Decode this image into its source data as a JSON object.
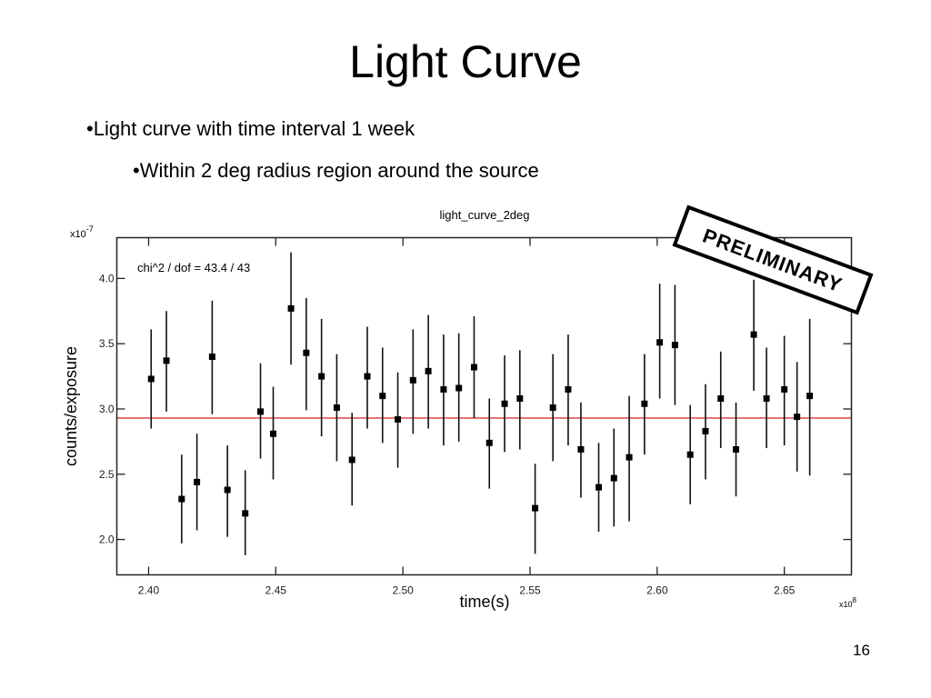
{
  "slide": {
    "title": "Light Curve",
    "bullets": [
      "•Light curve with time interval 1 week",
      "•Within 2 deg radius region around the source"
    ],
    "page_number": "16"
  },
  "stamp": {
    "text": "PRELIMINARY"
  },
  "colors": {
    "data": "#000000",
    "fit_line": "#d42020",
    "frame": "#222222"
  },
  "chart_data": {
    "type": "scatter",
    "title": "light_curve_2deg",
    "xlabel": "time(s)",
    "ylabel": "counts/exposure",
    "x_scale_label": "x10^8",
    "y_scale_label": "x10^-7",
    "x_exponent_base": "x10",
    "x_exponent": "8",
    "y_exponent_base": "x10",
    "y_exponent": "-7",
    "xlim": [
      2.3875,
      2.6764
    ],
    "ylim": [
      1.729,
      4.3125
    ],
    "xticks": [
      2.4,
      2.45,
      2.5,
      2.55,
      2.6,
      2.65
    ],
    "xtick_labels": [
      "2.40",
      "2.45",
      "2.50",
      "2.55",
      "2.60",
      "2.65"
    ],
    "yticks": [
      2.0,
      2.5,
      3.0,
      3.5,
      4.0
    ],
    "ytick_labels": [
      "2.0",
      "2.5",
      "3.0",
      "3.5",
      "4.0"
    ],
    "grid": false,
    "legend": null,
    "annotation": "chi^2 / dof = 43.4 / 43",
    "fit_line": {
      "type": "constant",
      "value": 2.93,
      "color": "#d42020"
    },
    "series": [
      {
        "name": "light_curve_2deg",
        "marker": "square",
        "x": [
          2.401,
          2.407,
          2.413,
          2.419,
          2.425,
          2.431,
          2.438,
          2.444,
          2.449,
          2.456,
          2.462,
          2.468,
          2.474,
          2.48,
          2.486,
          2.492,
          2.498,
          2.504,
          2.51,
          2.516,
          2.522,
          2.528,
          2.534,
          2.54,
          2.546,
          2.552,
          2.559,
          2.565,
          2.57,
          2.577,
          2.583,
          2.589,
          2.595,
          2.601,
          2.607,
          2.613,
          2.619,
          2.625,
          2.631,
          2.638,
          2.643,
          2.65,
          2.655,
          2.66
        ],
        "y": [
          3.23,
          3.37,
          2.31,
          2.44,
          3.4,
          2.38,
          2.2,
          2.98,
          2.81,
          3.77,
          3.43,
          3.25,
          3.01,
          2.61,
          3.25,
          3.1,
          2.92,
          3.22,
          3.29,
          3.15,
          3.16,
          3.32,
          2.74,
          3.04,
          3.08,
          2.24,
          3.01,
          3.15,
          2.69,
          2.4,
          2.47,
          2.63,
          3.04,
          3.51,
          3.49,
          2.65,
          2.83,
          3.08,
          2.69,
          3.57,
          3.08,
          3.15,
          2.94,
          3.1
        ],
        "y_err_high": [
          3.61,
          3.75,
          2.65,
          2.81,
          3.83,
          2.72,
          2.53,
          3.35,
          3.17,
          4.2,
          3.85,
          3.69,
          3.42,
          2.97,
          3.63,
          3.47,
          3.28,
          3.61,
          3.72,
          3.57,
          3.58,
          3.71,
          3.08,
          3.41,
          3.45,
          2.58,
          3.42,
          3.57,
          3.05,
          2.74,
          2.85,
          3.1,
          3.42,
          3.96,
          3.95,
          3.03,
          3.19,
          3.44,
          3.05,
          3.99,
          3.47,
          3.56,
          3.36,
          3.69
        ],
        "y_err_low": [
          2.85,
          2.98,
          1.97,
          2.07,
          2.96,
          2.02,
          1.88,
          2.62,
          2.46,
          3.34,
          2.99,
          2.79,
          2.6,
          2.26,
          2.85,
          2.74,
          2.55,
          2.81,
          2.85,
          2.72,
          2.75,
          2.93,
          2.39,
          2.67,
          2.69,
          1.89,
          2.6,
          2.72,
          2.32,
          2.06,
          2.1,
          2.14,
          2.65,
          3.08,
          3.03,
          2.27,
          2.46,
          2.7,
          2.33,
          3.14,
          2.7,
          2.72,
          2.52,
          2.49
        ]
      }
    ]
  }
}
